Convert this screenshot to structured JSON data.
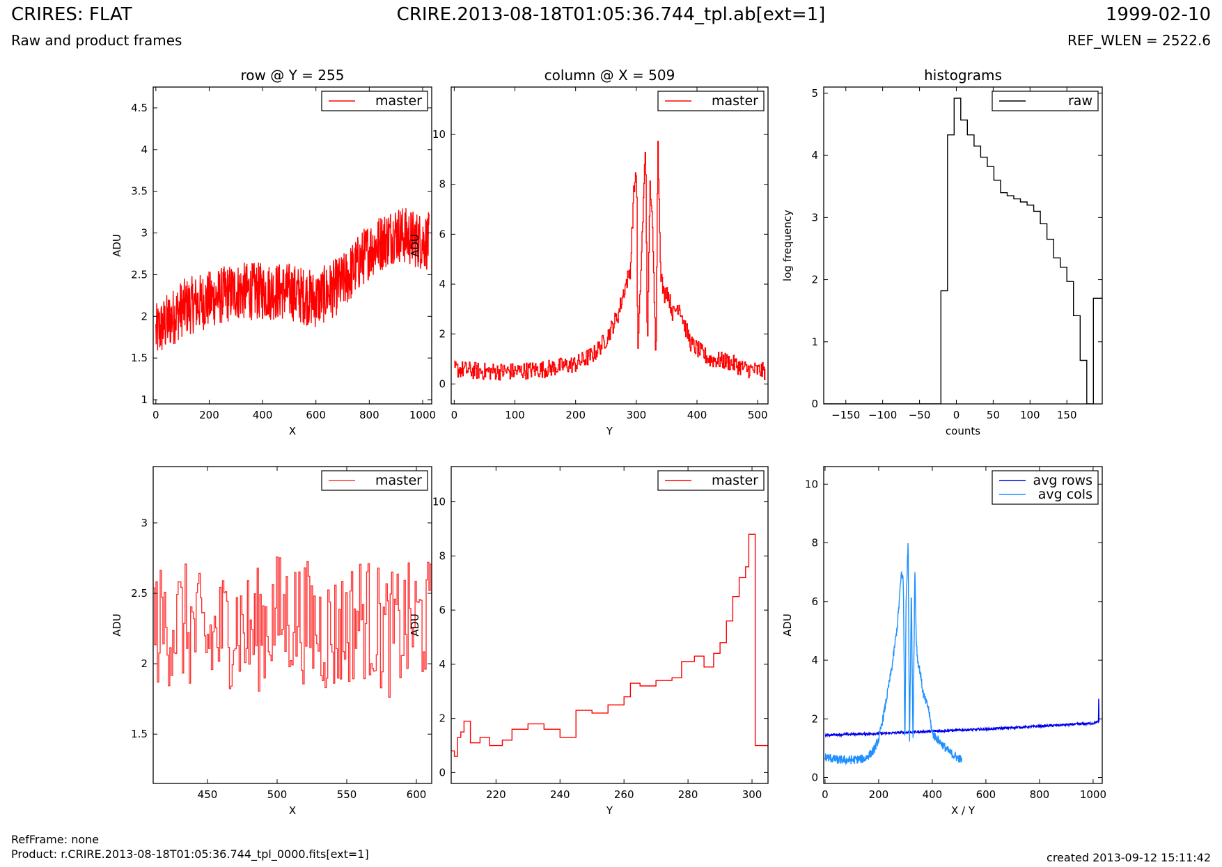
{
  "header": {
    "title_left": "CRIRES: FLAT",
    "subtitle_left": "Raw and product frames",
    "title_center": "CRIRE.2013-08-18T01:05:36.744_tpl.ab[ext=1]",
    "title_right": "1999-02-10",
    "subtitle_right": "REF_WLEN = 2522.6"
  },
  "footer": {
    "ref_frame": "RefFrame: none",
    "product": "Product: r.CRIRE.2013-08-18T01:05:36.744_tpl_0000.fits[ext=1]",
    "created": "created 2013-09-12 15:11:42"
  },
  "colors": {
    "master": "#ff0000",
    "master_zoom": "#ff3333",
    "raw": "#000000",
    "avg_rows": "#0000ee",
    "avg_cols": "#1e90ff"
  },
  "chart_data": [
    {
      "type": "line",
      "title": "row @ Y = 255",
      "xlabel": "X",
      "ylabel": "ADU",
      "xlim": [
        -10,
        1034
      ],
      "ylim": [
        0.95,
        4.75
      ],
      "xticks": [
        0,
        200,
        400,
        600,
        800,
        1000
      ],
      "yticks": [
        1.0,
        1.5,
        2.0,
        2.5,
        3.0,
        3.5,
        4.0,
        4.5
      ],
      "legend": "upper right",
      "grid": false,
      "series": [
        {
          "name": "master",
          "color": "#ff0000",
          "style": "noisy-line",
          "x": [
            0,
            100,
            200,
            300,
            400,
            500,
            600,
            700,
            800,
            900,
            1000,
            1024
          ],
          "y": [
            1.8,
            2.1,
            2.2,
            2.3,
            2.3,
            2.3,
            2.2,
            2.4,
            2.8,
            3.0,
            2.9,
            2.9
          ],
          "noise_amplitude": 0.35
        }
      ]
    },
    {
      "type": "line",
      "title": "column @ X = 509",
      "xlabel": "Y",
      "ylabel": "ADU",
      "xlim": [
        -5,
        517
      ],
      "ylim": [
        -0.8,
        11.9
      ],
      "xticks": [
        0,
        100,
        200,
        300,
        400,
        500
      ],
      "yticks": [
        0,
        2,
        4,
        6,
        8,
        10
      ],
      "legend": "upper right",
      "grid": false,
      "series": [
        {
          "name": "master",
          "color": "#ff0000",
          "style": "step",
          "x": [
            0,
            50,
            100,
            150,
            200,
            230,
            250,
            270,
            280,
            290,
            295,
            300,
            302,
            315,
            318,
            322,
            325,
            332,
            335,
            340,
            345,
            350,
            360,
            370,
            380,
            390,
            400,
            420,
            450,
            480,
            512
          ],
          "y": [
            0.6,
            0.5,
            0.5,
            0.6,
            0.8,
            1.2,
            1.8,
            2.8,
            3.8,
            4.6,
            7.5,
            8.8,
            1.0,
            9.7,
            1.0,
            8.0,
            7.2,
            1.0,
            9.9,
            4.5,
            3.5,
            3.8,
            2.8,
            3.2,
            2.3,
            1.6,
            1.4,
            1.0,
            0.9,
            0.6,
            0.5
          ],
          "noise_amplitude": 0.35
        }
      ]
    },
    {
      "type": "line",
      "title": "histograms",
      "xlabel": "counts",
      "ylabel": "log frequency",
      "xlim": [
        -180,
        198
      ],
      "ylim": [
        0,
        5.1
      ],
      "xticks": [
        -150,
        -100,
        -50,
        0,
        50,
        100,
        150
      ],
      "yticks": [
        0,
        1,
        2,
        3,
        4,
        5
      ],
      "legend": "upper right",
      "grid": false,
      "series": [
        {
          "name": "raw",
          "color": "#000000",
          "style": "step",
          "x": [
            -180,
            -30,
            -21,
            -12,
            -3,
            6,
            15,
            24,
            33,
            42,
            51,
            60,
            69,
            78,
            87,
            96,
            105,
            114,
            123,
            132,
            141,
            150,
            159,
            168,
            177,
            186,
            195,
            198
          ],
          "y": [
            0,
            0,
            1.82,
            4.33,
            4.92,
            4.57,
            4.33,
            4.15,
            3.97,
            3.82,
            3.6,
            3.4,
            3.35,
            3.3,
            3.25,
            3.2,
            3.1,
            2.9,
            2.65,
            2.35,
            2.2,
            1.97,
            1.42,
            0.7,
            0,
            1.7,
            1.7,
            1.7
          ]
        }
      ]
    },
    {
      "type": "line",
      "xlabel": "X",
      "ylabel": "ADU",
      "xlim": [
        411,
        611
      ],
      "ylim": [
        1.15,
        3.4
      ],
      "xticks": [
        450,
        500,
        550,
        600
      ],
      "yticks": [
        1.5,
        2.0,
        2.5,
        3.0
      ],
      "legend": "upper right",
      "grid": false,
      "series": [
        {
          "name": "master",
          "color": "#ff3333",
          "style": "step",
          "x": [
            411,
            430,
            450,
            470,
            480,
            500,
            520,
            540,
            560,
            580,
            600,
            611
          ],
          "y": [
            2.25,
            2.3,
            2.15,
            2.3,
            2.2,
            2.35,
            2.3,
            2.2,
            2.35,
            2.2,
            2.3,
            2.3
          ],
          "noise_amplitude": 0.45
        }
      ]
    },
    {
      "type": "line",
      "xlabel": "Y",
      "ylabel": "ADU",
      "xlim": [
        206,
        305
      ],
      "ylim": [
        -0.4,
        11.3
      ],
      "xticks": [
        220,
        240,
        260,
        280,
        300
      ],
      "yticks": [
        0,
        2,
        4,
        6,
        8,
        10
      ],
      "legend": "upper right",
      "grid": false,
      "series": [
        {
          "name": "master",
          "color": "#ff0000",
          "style": "step",
          "x": [
            206,
            207,
            208,
            209,
            210,
            212,
            215,
            218,
            222,
            225,
            230,
            235,
            240,
            245,
            250,
            255,
            260,
            262,
            265,
            270,
            275,
            278,
            282,
            285,
            288,
            290,
            292,
            294,
            296,
            298,
            299,
            300,
            301,
            305
          ],
          "y": [
            0.8,
            0.6,
            1.3,
            1.5,
            1.9,
            1.1,
            1.3,
            1.0,
            1.2,
            1.6,
            1.8,
            1.6,
            1.3,
            2.3,
            2.2,
            2.5,
            2.8,
            3.3,
            3.2,
            3.4,
            3.5,
            4.1,
            4.3,
            3.9,
            4.4,
            4.8,
            5.6,
            6.5,
            7.2,
            7.6,
            8.8,
            8.8,
            1.0,
            1.0
          ]
        }
      ]
    },
    {
      "type": "line",
      "xlabel": "X / Y",
      "ylabel": "ADU",
      "xlim": [
        -5,
        1034
      ],
      "ylim": [
        -0.2,
        10.6
      ],
      "xticks": [
        0,
        200,
        400,
        600,
        800,
        1000
      ],
      "yticks": [
        0,
        2,
        4,
        6,
        8,
        10
      ],
      "legend": "upper right",
      "grid": false,
      "series": [
        {
          "name": "avg rows",
          "color": "#0000ee",
          "style": "noisy-line",
          "x": [
            0,
            200,
            400,
            600,
            800,
            1000,
            1020,
            1021,
            1022
          ],
          "y": [
            1.45,
            1.5,
            1.58,
            1.65,
            1.75,
            1.85,
            1.9,
            2.8,
            1.9
          ],
          "noise_amplitude": 0.04
        },
        {
          "name": "avg cols",
          "color": "#1e90ff",
          "style": "noisy-line",
          "x": [
            0,
            50,
            100,
            150,
            180,
            200,
            220,
            250,
            270,
            285,
            292,
            298,
            302,
            310,
            315,
            322,
            328,
            335,
            340,
            345,
            355,
            365,
            375,
            385,
            400,
            430,
            460,
            490,
            510
          ],
          "y": [
            0.7,
            0.6,
            0.6,
            0.65,
            0.9,
            1.3,
            2.2,
            3.8,
            5.2,
            7.0,
            6.7,
            1.0,
            5.8,
            8.2,
            1.0,
            6.5,
            1.0,
            7.2,
            4.8,
            4.0,
            3.6,
            2.9,
            2.6,
            2.4,
            1.5,
            1.2,
            0.9,
            0.7,
            0.6
          ],
          "noise_amplitude": 0.15
        }
      ]
    }
  ]
}
